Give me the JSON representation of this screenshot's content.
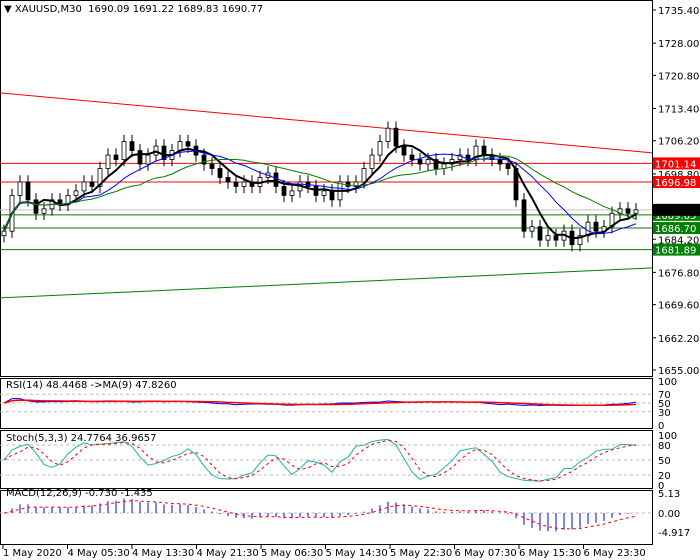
{
  "header": {
    "symbol": "XAUUSD,M30",
    "ohlc": "1690.09 1691.22 1689.83 1690.77"
  },
  "colors": {
    "bull": "#ffffff",
    "bear": "#000000",
    "resistance": "#ff0000",
    "support": "#008000",
    "ma_fast": "#000000",
    "ma_mid": "#0000ff",
    "ma_slow": "#008000",
    "rsi": "#0000ff",
    "signal": "#ff0000",
    "stoch_main": "#20b2aa",
    "macd_hist": "#0000ff"
  },
  "chart_data": {
    "type": "candlestick",
    "ylim": [
      1655.0,
      1735.4
    ],
    "price_ticks": [
      "1735.40",
      "1728.00",
      "1720.80",
      "1713.40",
      "1706.20",
      "1698.80",
      "1691.40",
      "1684.20",
      "1676.80",
      "1669.60",
      "1662.20",
      "1655.00"
    ],
    "time_ticks": [
      "1 May 2020",
      "4 May 05:30",
      "4 May 13:30",
      "4 May 21:30",
      "5 May 06:30",
      "5 May 14:30",
      "5 May 22:30",
      "6 May 07:30",
      "6 May 15:30",
      "6 May 23:30"
    ],
    "closes": [
      1686,
      1694,
      1697,
      1693,
      1690,
      1691,
      1693,
      1692,
      1694,
      1695,
      1697,
      1696,
      1700,
      1703,
      1702,
      1706,
      1704,
      1701,
      1703,
      1705,
      1702,
      1704,
      1706,
      1705,
      1703,
      1701,
      1700,
      1698,
      1697,
      1696,
      1697,
      1696,
      1698,
      1699,
      1696,
      1694,
      1695,
      1697,
      1696,
      1694,
      1695,
      1693,
      1697,
      1696,
      1697,
      1700,
      1703,
      1706,
      1709,
      1705,
      1703,
      1702,
      1701,
      1702,
      1700,
      1701,
      1702,
      1703,
      1702,
      1705,
      1703,
      1702,
      1701,
      1700,
      1693,
      1686,
      1687,
      1684,
      1685,
      1684,
      1686,
      1683,
      1685,
      1688,
      1686,
      1687,
      1690,
      1691,
      1690,
      1690.77
    ],
    "levels": [
      {
        "price": 1701.14,
        "label": "1701.14",
        "color": "#ff0000"
      },
      {
        "price": 1696.98,
        "label": "1696.98",
        "color": "#ff0000"
      },
      {
        "price": 1689.65,
        "label": "1689.65",
        "color": "#008000"
      },
      {
        "price": 1686.7,
        "label": "1686.70",
        "color": "#008000"
      },
      {
        "price": 1681.89,
        "label": "1681.89",
        "color": "#008000"
      }
    ],
    "current_price": 1690.77,
    "trendlines": [
      {
        "from": 1716.9,
        "to": 1703.5,
        "color": "#ff0000"
      },
      {
        "from": 1671.1,
        "to": 1677.8,
        "color": "#008000"
      }
    ],
    "indicators": {
      "rsi": {
        "label": "RSI(14) 48.4468  ->MA(9) 47.8260",
        "ticks": [
          "100",
          "70",
          "50",
          "30",
          "0"
        ]
      },
      "stoch": {
        "label": "Stoch(5,3,3) 24.7764 36.9657",
        "ticks": [
          "100",
          "80",
          "50",
          "20",
          "0"
        ]
      },
      "macd": {
        "label": "MACD(12,26,9) -0.730 -1.435",
        "ticks": [
          "5.13",
          "0.00",
          "-4.917"
        ]
      }
    }
  }
}
